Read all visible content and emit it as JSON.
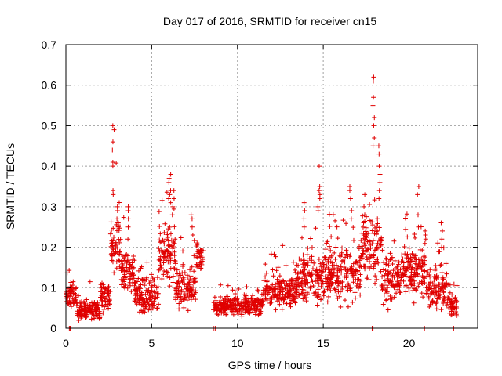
{
  "chart_data": {
    "type": "scatter",
    "title": "Day 017 of 2016, SRMTID for receiver cn15",
    "xlabel": "GPS time / hours",
    "ylabel": "SRMTID / TECUs",
    "xlim": [
      0,
      24
    ],
    "ylim": [
      0,
      0.7
    ],
    "xticks": [
      0,
      5,
      10,
      15,
      20
    ],
    "xtick_labels": [
      "0",
      "5",
      "10",
      "15",
      "20"
    ],
    "yticks": [
      0,
      0.1,
      0.2,
      0.3,
      0.4,
      0.5,
      0.6,
      0.7
    ],
    "ytick_labels": [
      "0",
      "0.1",
      "0.2",
      "0.3",
      "0.4",
      "0.5",
      "0.6",
      "0.7"
    ],
    "grid": true,
    "marker": "plus",
    "series_color": "#e00000",
    "series": [
      {
        "name": "SRMTID",
        "segments": [
          {
            "x_start": 0.0,
            "x_end": 0.6,
            "baseline": 0.08,
            "spread": 0.04
          },
          {
            "x_start": 0.6,
            "x_end": 2.0,
            "baseline": 0.045,
            "spread": 0.035
          },
          {
            "x_start": 2.0,
            "x_end": 2.6,
            "baseline": 0.08,
            "spread": 0.05
          },
          {
            "x_start": 2.6,
            "x_end": 3.2,
            "baseline": 0.2,
            "spread": 0.1
          },
          {
            "x_start": 3.2,
            "x_end": 4.0,
            "baseline": 0.14,
            "spread": 0.08
          },
          {
            "x_start": 4.0,
            "x_end": 5.4,
            "baseline": 0.08,
            "spread": 0.06
          },
          {
            "x_start": 5.4,
            "x_end": 6.4,
            "baseline": 0.18,
            "spread": 0.1
          },
          {
            "x_start": 6.4,
            "x_end": 7.6,
            "baseline": 0.1,
            "spread": 0.07
          },
          {
            "x_start": 7.6,
            "x_end": 8.0,
            "baseline": 0.18,
            "spread": 0.05
          },
          {
            "x_start": 8.6,
            "x_end": 11.5,
            "baseline": 0.055,
            "spread": 0.035
          },
          {
            "x_start": 11.5,
            "x_end": 13.5,
            "baseline": 0.09,
            "spread": 0.06
          },
          {
            "x_start": 13.5,
            "x_end": 15.0,
            "baseline": 0.12,
            "spread": 0.08
          },
          {
            "x_start": 15.0,
            "x_end": 17.2,
            "baseline": 0.13,
            "spread": 0.09
          },
          {
            "x_start": 17.2,
            "x_end": 18.4,
            "baseline": 0.2,
            "spread": 0.12
          },
          {
            "x_start": 18.4,
            "x_end": 19.5,
            "baseline": 0.12,
            "spread": 0.08
          },
          {
            "x_start": 19.5,
            "x_end": 21.0,
            "baseline": 0.14,
            "spread": 0.09
          },
          {
            "x_start": 21.0,
            "x_end": 22.2,
            "baseline": 0.1,
            "spread": 0.07
          },
          {
            "x_start": 22.2,
            "x_end": 22.8,
            "baseline": 0.06,
            "spread": 0.04
          }
        ],
        "peaks": [
          {
            "x": 2.75,
            "values": [
              0.5,
              0.49,
              0.46,
              0.44,
              0.41,
              0.4,
              0.34,
              0.33
            ]
          },
          {
            "x": 3.0,
            "values": [
              0.3,
              0.29,
              0.27,
              0.26,
              0.25
            ]
          },
          {
            "x": 3.6,
            "values": [
              0.3,
              0.29,
              0.27,
              0.25,
              0.22
            ]
          },
          {
            "x": 6.05,
            "values": [
              0.38,
              0.37,
              0.36,
              0.34,
              0.33,
              0.32,
              0.31
            ]
          },
          {
            "x": 6.25,
            "values": [
              0.34,
              0.32,
              0.3,
              0.28
            ]
          },
          {
            "x": 7.35,
            "values": [
              0.28,
              0.27,
              0.25,
              0.23
            ]
          },
          {
            "x": 13.9,
            "values": [
              0.31,
              0.29,
              0.27,
              0.25
            ]
          },
          {
            "x": 14.75,
            "values": [
              0.4,
              0.35,
              0.34,
              0.33,
              0.32,
              0.3,
              0.29
            ]
          },
          {
            "x": 16.6,
            "values": [
              0.35,
              0.34,
              0.32,
              0.29,
              0.27
            ]
          },
          {
            "x": 17.4,
            "values": [
              0.33,
              0.3,
              0.28,
              0.26
            ]
          },
          {
            "x": 17.95,
            "values": [
              0.62,
              0.61,
              0.57,
              0.55,
              0.52,
              0.5,
              0.47,
              0.45
            ]
          },
          {
            "x": 18.25,
            "values": [
              0.45,
              0.43,
              0.4,
              0.38,
              0.36,
              0.34,
              0.32
            ]
          },
          {
            "x": 20.55,
            "values": [
              0.35,
              0.33,
              0.28,
              0.25
            ]
          },
          {
            "x": 20.95,
            "values": [
              0.24,
              0.23,
              0.22
            ]
          },
          {
            "x": 21.9,
            "values": [
              0.26,
              0.24,
              0.22,
              0.2
            ]
          }
        ],
        "zero_points": [
          0.2,
          0.25,
          8.6,
          8.7,
          17.85,
          17.9,
          20.9,
          22.6
        ]
      }
    ]
  }
}
